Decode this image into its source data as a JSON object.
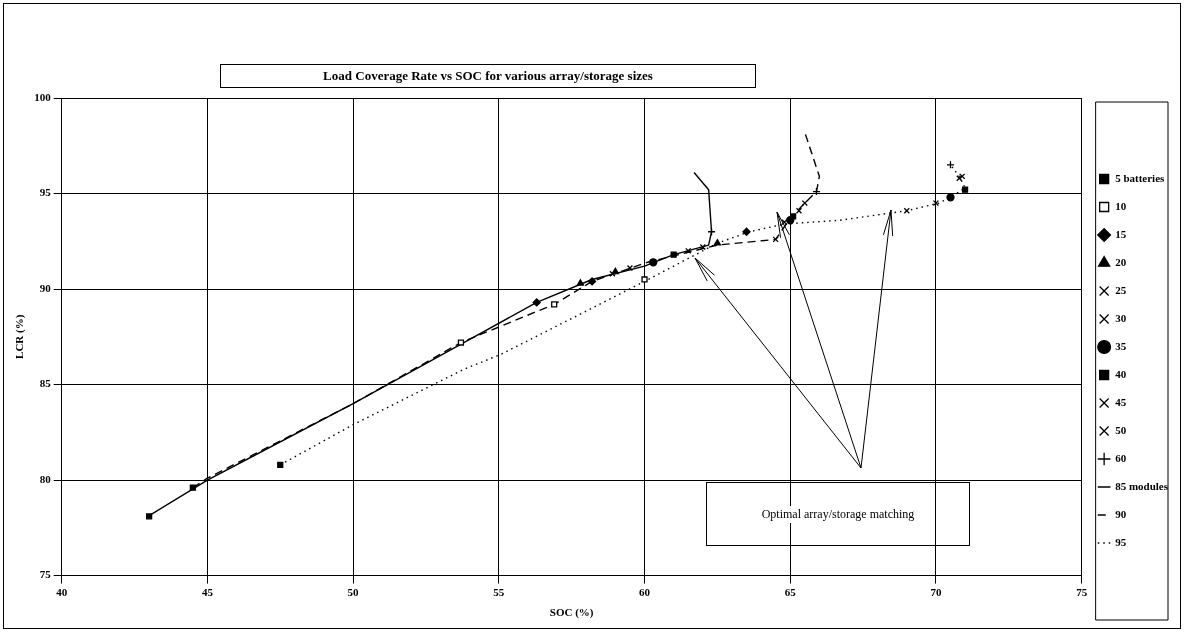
{
  "chart_data": {
    "type": "line",
    "title": "Load Coverage Rate vs SOC for various array/storage sizes",
    "xlabel": "SOC (%)",
    "ylabel": "LCR (%)",
    "xlim": [
      40,
      75
    ],
    "xticks": [
      40,
      45,
      50,
      55,
      60,
      65,
      70,
      75
    ],
    "ylim": [
      75,
      100
    ],
    "yticks": [
      75,
      80,
      85,
      90,
      95,
      100
    ],
    "grid": true,
    "legend": "right",
    "annotations": [
      "Optimal array/storage matching"
    ],
    "series": [
      {
        "type": "scatter",
        "name": "5 batteries",
        "color": "#000000",
        "marker": "square",
        "x": [
          43,
          44.5,
          47.5
        ],
        "values": [
          78.1,
          79.6,
          80.8
        ]
      },
      {
        "type": "scatter",
        "name": "10",
        "color": "#000000",
        "marker": "square-open",
        "x": [
          53.7,
          56.9,
          60
        ],
        "values": [
          87.2,
          89.2,
          90.5
        ]
      },
      {
        "type": "scatter",
        "name": "15",
        "color": "#000000",
        "marker": "diamond",
        "x": [
          56.3,
          58.2,
          63.5
        ],
        "values": [
          89.3,
          90.4,
          93
        ]
      },
      {
        "type": "scatter",
        "name": "20",
        "color": "#000000",
        "marker": "triangle",
        "x": [
          57.8,
          59,
          62.5
        ],
        "values": [
          90.3,
          90.9,
          92.4
        ]
      },
      {
        "type": "scatter",
        "name": "25",
        "color": "#000000",
        "marker": "cross",
        "x": [
          58.9,
          64.5,
          69
        ],
        "values": [
          90.8,
          92.6,
          94.1
        ]
      },
      {
        "type": "scatter",
        "name": "30",
        "color": "#000000",
        "marker": "cross",
        "x": [
          59.5,
          64.8,
          70
        ],
        "values": [
          91.1,
          93.5,
          94.5
        ]
      },
      {
        "type": "scatter",
        "name": "35",
        "color": "#000000",
        "marker": "circle",
        "x": [
          60.3,
          65,
          70.5
        ],
        "values": [
          91.4,
          93.6,
          94.8
        ]
      },
      {
        "type": "scatter",
        "name": "40",
        "color": "#000000",
        "marker": "square",
        "x": [
          61,
          65.1,
          71
        ],
        "values": [
          91.8,
          93.8,
          95.2
        ]
      },
      {
        "type": "scatter",
        "name": "45",
        "color": "#000000",
        "marker": "cross",
        "x": [
          61.5,
          65.3,
          70.8
        ],
        "values": [
          92,
          94.1,
          95.8
        ]
      },
      {
        "type": "scatter",
        "name": "50",
        "color": "#000000",
        "marker": "cross",
        "x": [
          62,
          65.5,
          70.9
        ],
        "values": [
          92.2,
          94.5,
          95.9
        ]
      },
      {
        "type": "scatter",
        "name": "60",
        "color": "#000000",
        "marker": "plus",
        "x": [
          62.3,
          65.9,
          70.5
        ],
        "values": [
          93,
          95.1,
          96.5
        ]
      },
      {
        "name": "85 modules",
        "color": "#000000",
        "marker": "none",
        "line_style": "solid",
        "x": [
          42.96,
          45,
          50,
          53.8,
          56.3,
          58.2,
          60,
          61,
          62.2,
          62.3,
          62.2,
          61.7
        ],
        "values": [
          78.1,
          80,
          84,
          87.2,
          89.3,
          90.5,
          91.2,
          91.8,
          92.3,
          93,
          95.2,
          96.1
        ]
      },
      {
        "name": "90",
        "color": "#000000",
        "marker": "none",
        "line_style": "dashed",
        "x": [
          44.5,
          45,
          50,
          53.7,
          56.9,
          58.2,
          60.1,
          62.5,
          64.5,
          65,
          65.5,
          65.9,
          66,
          65.5
        ],
        "values": [
          79.6,
          80.1,
          84,
          87.2,
          89.2,
          90.4,
          91.4,
          92.3,
          92.6,
          93.7,
          94.5,
          95.1,
          95.9,
          98.2
        ]
      },
      {
        "name": "95",
        "color": "#000000",
        "marker": "none",
        "line_style": "dotted",
        "x": [
          47.5,
          50,
          53.8,
          55.1,
          60,
          62.5,
          63.6,
          64.8,
          66.7,
          69,
          70.1,
          70.5,
          71,
          70.8,
          70.5
        ],
        "values": [
          80.8,
          82.9,
          85.8,
          86.6,
          90.4,
          92.4,
          93,
          93.4,
          93.6,
          94.1,
          94.5,
          94.8,
          95.3,
          95.9,
          96.5
        ]
      }
    ]
  }
}
